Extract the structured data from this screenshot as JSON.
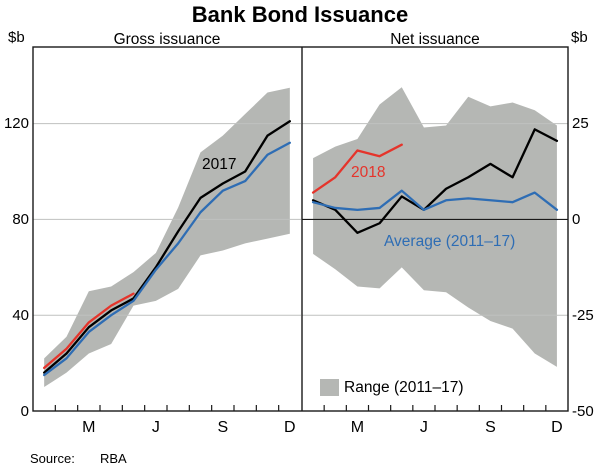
{
  "title": "Bank Bond Issuance",
  "axis_unit_left": "$b",
  "axis_unit_right": "$b",
  "source": {
    "label": "Source:",
    "value": "RBA"
  },
  "colors": {
    "line_2017": "#000000",
    "line_2018": "#e5342b",
    "line_average": "#2e6db4",
    "range_band": "#b5b7b4",
    "gridline": "#bfc1bf",
    "axis": "#1a1a1a"
  },
  "chart_data": [
    {
      "type": "line",
      "panel_title": "Gross issuance",
      "unit": "$b",
      "x_months": [
        "Jan",
        "Feb",
        "Mar",
        "Apr",
        "May",
        "Jun",
        "Jul",
        "Aug",
        "Sep",
        "Oct",
        "Nov",
        "Dec"
      ],
      "x_axis_labels": [
        {
          "text": "M",
          "month": 3
        },
        {
          "text": "J",
          "month": 6
        },
        {
          "text": "S",
          "month": 9
        },
        {
          "text": "D",
          "month": 12
        }
      ],
      "ylim": [
        0,
        152
      ],
      "yticks": [
        0,
        40,
        80,
        120
      ],
      "gridlines": [
        40,
        80,
        120
      ],
      "zero_line": false,
      "series": [
        {
          "name": "2017",
          "color": "#000000",
          "values": [
            16,
            24,
            35,
            42,
            47,
            60,
            75,
            89,
            95,
            100,
            115,
            121
          ]
        },
        {
          "name": "Average (2011–17)",
          "color": "#2e6db4",
          "values": [
            15,
            22,
            33,
            40,
            46,
            59,
            70,
            83,
            92,
            96,
            107,
            112
          ]
        },
        {
          "name": "2018",
          "color": "#e5342b",
          "values": [
            18,
            26,
            37,
            44,
            49
          ]
        }
      ],
      "range": {
        "name": "Range (2011–17)",
        "color": "#b5b7b4",
        "top": [
          22,
          31,
          50,
          52,
          58,
          66,
          85,
          108,
          115,
          124,
          133,
          135
        ],
        "bottom": [
          10,
          16,
          24,
          28,
          44,
          46,
          51,
          65,
          67,
          70,
          72,
          74
        ]
      }
    },
    {
      "type": "line",
      "panel_title": "Net issuance",
      "unit": "$b",
      "x_months": [
        "Jan",
        "Feb",
        "Mar",
        "Apr",
        "May",
        "Jun",
        "Jul",
        "Aug",
        "Sep",
        "Oct",
        "Nov",
        "Dec"
      ],
      "x_axis_labels": [
        {
          "text": "M",
          "month": 3
        },
        {
          "text": "J",
          "month": 6
        },
        {
          "text": "S",
          "month": 9
        },
        {
          "text": "D",
          "month": 12
        }
      ],
      "ylim": [
        -50,
        45
      ],
      "yticks": [
        -50,
        -25,
        0,
        25
      ],
      "gridlines": [
        -25,
        25
      ],
      "zero_line": true,
      "series": [
        {
          "name": "2017",
          "color": "#000000",
          "values": [
            5,
            2.5,
            -3.5,
            -1,
            6,
            2.5,
            8,
            11,
            14.5,
            11,
            23.5,
            20.5
          ]
        },
        {
          "name": "Average (2011–17)",
          "color": "#2e6db4",
          "values": [
            4.5,
            3,
            2.5,
            3,
            7.5,
            2.5,
            5,
            5.5,
            5,
            4.5,
            7,
            2.5
          ]
        },
        {
          "name": "2018",
          "color": "#e5342b",
          "values": [
            7,
            11,
            18,
            16.5,
            19.5
          ]
        }
      ],
      "range": {
        "name": "Range (2011–17)",
        "color": "#b5b7b4",
        "top": [
          16,
          19,
          21,
          30,
          34.5,
          24,
          24.5,
          32,
          29.5,
          30.5,
          28.5,
          24.5
        ],
        "bottom": [
          -9,
          -13,
          -17.5,
          -18,
          -12.5,
          -18.5,
          -19,
          -23,
          -26.5,
          -28.5,
          -35,
          -38.5
        ]
      }
    }
  ]
}
